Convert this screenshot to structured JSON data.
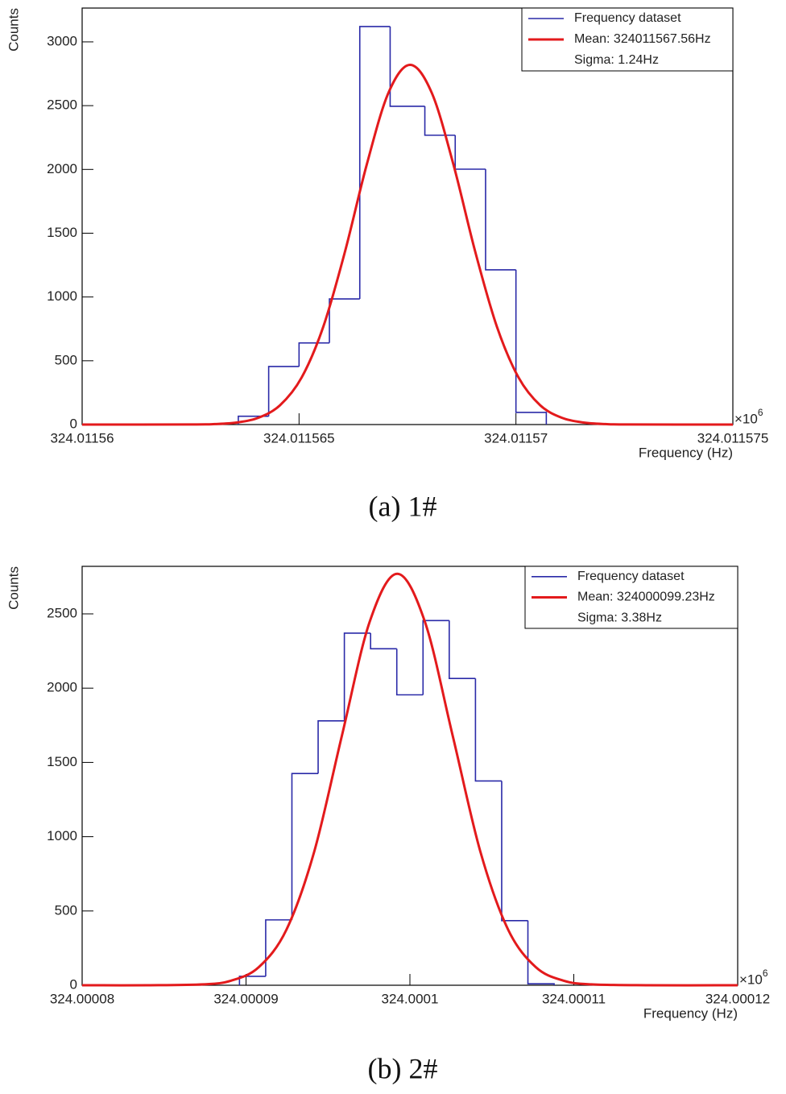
{
  "chart_data": [
    {
      "type": "histogram",
      "caption": "(a) 1#",
      "x_label": "Frequency (Hz)",
      "y_label": "Counts",
      "x_multiplier": "×10",
      "x_multiplier_exp": "6",
      "xlim": [
        324.01156,
        324.011575
      ],
      "xticks": [
        324.01156,
        324.011565,
        324.01157,
        324.011575
      ],
      "ylim": [
        0,
        3265
      ],
      "yticks": [
        0,
        500,
        1000,
        1500,
        2000,
        2500,
        3000
      ],
      "legend": "top-right",
      "legend_notes": [
        "Sigma: 1.24Hz"
      ],
      "series": [
        {
          "name": "Frequency dataset",
          "color": "#2a2aa8",
          "bins": [
            324.0115636,
            324.0115643,
            324.011565,
            324.0115657,
            324.0115664,
            324.0115671,
            324.0115679,
            324.0115686,
            324.0115693,
            324.01157,
            324.0115707
          ],
          "values": [
            65,
            455,
            640,
            985,
            3120,
            2495,
            2268,
            2002,
            1213,
            95
          ]
        },
        {
          "name": "Mean: 324011567.56Hz",
          "type": "line",
          "color": "#e31a1c",
          "x": [
            324.01156,
            324.01156256,
            324.01156306,
            324.01156356,
            324.01156406,
            324.01156456,
            324.01156506,
            324.01156556,
            324.01156606,
            324.01156656,
            324.01156706,
            324.01156756,
            324.01156806,
            324.01156856,
            324.01156906,
            324.01156956,
            324.01157006,
            324.01157056,
            324.01157106,
            324.01157156,
            324.01157206,
            324.01157256,
            324.011575
          ],
          "values": [
            0,
            1,
            4,
            16,
            53,
            151,
            369,
            768,
            1357,
            2037,
            2600,
            2820,
            2600,
            2037,
            1357,
            768,
            369,
            151,
            53,
            16,
            4,
            1,
            0
          ]
        }
      ]
    },
    {
      "type": "histogram",
      "caption": "(b) 2#",
      "x_label": "Frequency (Hz)",
      "y_label": "Counts",
      "x_multiplier": "×10",
      "x_multiplier_exp": "6",
      "xlim": [
        324.00008,
        324.00012
      ],
      "xticks": [
        324.00008,
        324.00009,
        324.0001,
        324.00011,
        324.00012
      ],
      "ylim": [
        0,
        2820
      ],
      "yticks": [
        0,
        500,
        1000,
        1500,
        2000,
        2500
      ],
      "legend": "top-right",
      "legend_notes": [
        "Sigma: 3.38Hz"
      ],
      "series": [
        {
          "name": "Frequency dataset",
          "color": "#2a2aa8",
          "bins": [
            324.0000896,
            324.0000912,
            324.0000928,
            324.0000944,
            324.000096,
            324.0000976,
            324.0000992,
            324.0001008,
            324.0001024,
            324.000104,
            324.0001056,
            324.0001072,
            324.0001088
          ],
          "values": [
            60,
            440,
            1425,
            1780,
            2370,
            2265,
            1955,
            2455,
            2065,
            1375,
            435,
            10
          ]
        },
        {
          "name": "Mean: 324000099.23Hz",
          "type": "line",
          "color": "#e31a1c",
          "x": [
            324.00008,
            324.00008402,
            324.0000874,
            324.00008909,
            324.00009078,
            324.00009247,
            324.00009416,
            324.00009585,
            324.00009754,
            324.00009923,
            324.00010092,
            324.00010261,
            324.0001043,
            324.00010599,
            324.00010768,
            324.00010937,
            324.00011106,
            324.00011444,
            324.00012
          ],
          "values": [
            0,
            0,
            6,
            31,
            122,
            375,
            899,
            1680,
            2445,
            2770,
            2445,
            1680,
            899,
            375,
            122,
            31,
            6,
            0,
            0
          ]
        }
      ]
    }
  ]
}
